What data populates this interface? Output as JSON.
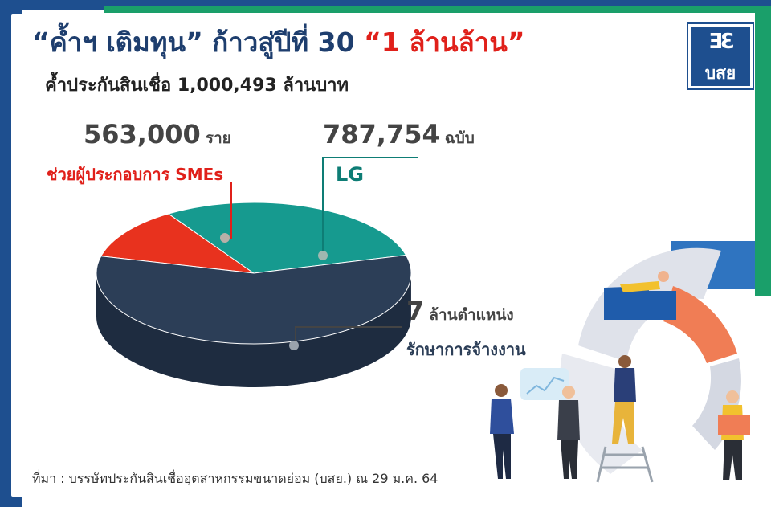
{
  "title": {
    "part1": "“ค้ำฯ เติมทุน”",
    "part2": "ก้าวสู่ปีที่ 30",
    "part3": "“1 ล้านล้าน”"
  },
  "subtitle": "ค้ำประกันสินเชื่อ 1,000,493 ล้านบาท",
  "logo": {
    "text": "บสย"
  },
  "callouts": [
    {
      "value": "563,000",
      "unit": "ราย",
      "desc": "ช่วยผู้ประกอบการ SMEs"
    },
    {
      "value": "787,754",
      "unit": "ฉบับ",
      "desc": "LG"
    },
    {
      "value": "7",
      "unit": "ล้านตำแหน่ง",
      "desc": "รักษาการจ้างงาน"
    }
  ],
  "source": "ที่มา : บรรษัทประกันสินเชื่ออุตสาหกรรมขนาดย่อม (บสย.) ณ 29 ม.ค. 64",
  "chart_data": {
    "type": "pie",
    "style": "3d",
    "slices": [
      {
        "label": "ช่วยผู้ประกอบการ SMEs",
        "share": 0.12,
        "color": "#e8321e",
        "side_color": "#b22310"
      },
      {
        "label": "LG",
        "share": 0.3,
        "color": "#169a8f",
        "side_color": "#0c6b63"
      },
      {
        "label": "รักษาการจ้างงาน",
        "share": 0.58,
        "color": "#2c3e57",
        "side_color": "#1e2c40"
      }
    ]
  },
  "colors": {
    "frame_blue": "#1e4f8f",
    "frame_green": "#1a9f6a",
    "title_blue": "#1e3e6e",
    "accent_red": "#e0201a",
    "teal": "#0e7d75"
  }
}
